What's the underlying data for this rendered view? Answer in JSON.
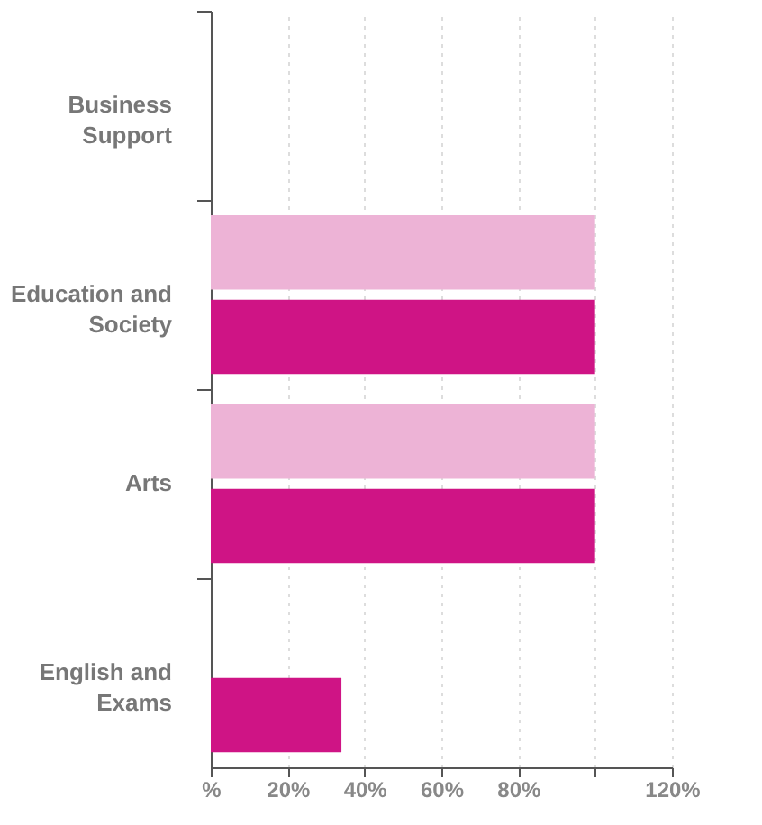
{
  "chart_data": {
    "type": "bar",
    "orientation": "horizontal",
    "categories": [
      "Business Support",
      "Education and Society",
      "Arts",
      "English and Exams"
    ],
    "series": [
      {
        "color": "#edb3d6",
        "values": [
          null,
          100,
          100,
          null
        ]
      },
      {
        "color": "#cf1485",
        "values": [
          null,
          100,
          100,
          34
        ]
      }
    ],
    "xlim": [
      0,
      120
    ],
    "xticks": [
      {
        "value": 0,
        "label": "%"
      },
      {
        "value": 20,
        "label": "20%"
      },
      {
        "value": 40,
        "label": "40%"
      },
      {
        "value": 60,
        "label": "60%"
      },
      {
        "value": 80,
        "label": "80%"
      },
      {
        "value": 100,
        "label": null
      },
      {
        "value": 120,
        "label": "120%"
      }
    ],
    "grid": "x",
    "legend": false
  }
}
